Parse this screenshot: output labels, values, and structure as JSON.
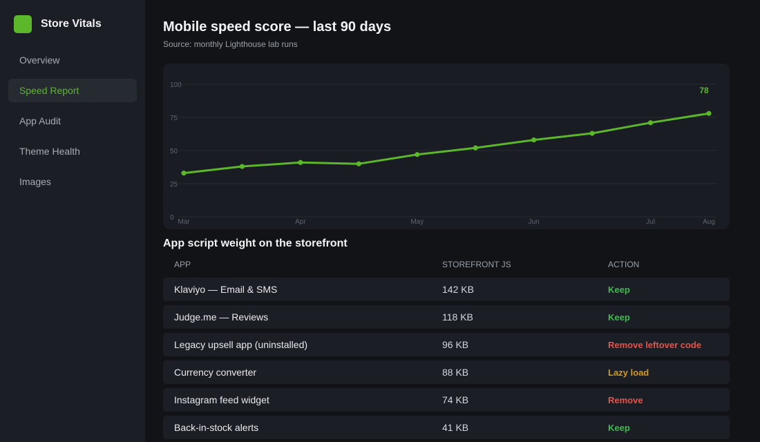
{
  "app": {
    "name": "Store Vitals"
  },
  "sidebar": {
    "items": [
      {
        "label": "Overview",
        "active": false
      },
      {
        "label": "Speed Report",
        "active": true
      },
      {
        "label": "App Audit",
        "active": false
      },
      {
        "label": "Theme Health",
        "active": false
      },
      {
        "label": "Images",
        "active": false
      }
    ]
  },
  "header": {
    "title": "Mobile speed score — last 90 days",
    "subtitle": "Source: monthly Lighthouse lab runs"
  },
  "chart_data": {
    "type": "line",
    "x": [
      0,
      1,
      2,
      3,
      4,
      5,
      6,
      7,
      8,
      9
    ],
    "values": [
      33,
      38,
      41,
      40,
      47,
      52,
      58,
      63,
      71,
      78
    ],
    "x_tick_labels": [
      {
        "label": "Mar",
        "x": 0
      },
      {
        "label": "Apr",
        "x": 2
      },
      {
        "label": "May",
        "x": 4
      },
      {
        "label": "Jun",
        "x": 6
      },
      {
        "label": "Jul",
        "x": 8
      },
      {
        "label": "Aug",
        "x": 9
      }
    ],
    "y_ticks": [
      0,
      25,
      50,
      75,
      100
    ],
    "ylim": [
      0,
      100
    ],
    "grid": true,
    "last_value_label": "78",
    "color": "#5cb82a"
  },
  "table": {
    "title": "App script weight on the storefront",
    "columns": [
      "APP",
      "STOREFRONT JS",
      "ACTION"
    ],
    "rows": [
      {
        "app": "Klaviyo — Email & SMS",
        "js": "142 KB",
        "action": "Keep",
        "action_color": "#3fb950"
      },
      {
        "app": "Judge.me — Reviews",
        "js": "118 KB",
        "action": "Keep",
        "action_color": "#3fb950"
      },
      {
        "app": "Legacy upsell app (uninstalled)",
        "js": "96 KB",
        "action": "Remove leftover code",
        "action_color": "#e5534b"
      },
      {
        "app": "Currency converter",
        "js": "88 KB",
        "action": "Lazy load",
        "action_color": "#d29922"
      },
      {
        "app": "Instagram feed widget",
        "js": "74 KB",
        "action": "Remove",
        "action_color": "#e5534b"
      },
      {
        "app": "Back-in-stock alerts",
        "js": "41 KB",
        "action": "Keep",
        "action_color": "#3fb950"
      }
    ]
  }
}
